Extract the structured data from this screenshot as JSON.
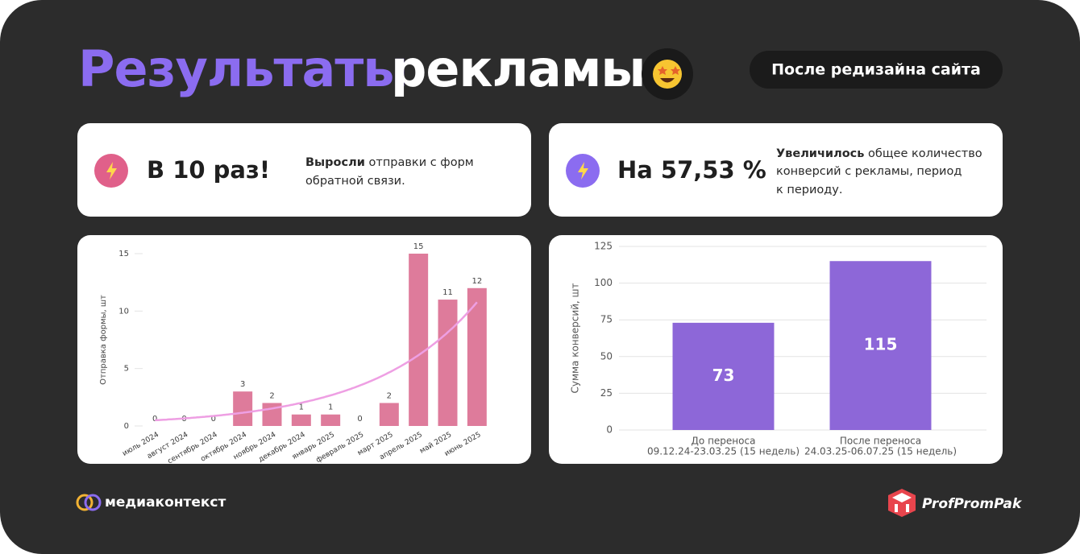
{
  "header": {
    "title_accent": "Результаты",
    "title_rest": "рекламы",
    "badge": "После редизайна сайта"
  },
  "cards": [
    {
      "headline": "В 10 раз!",
      "lead": "Выросли",
      "lines": [
        "отправки с форм",
        "обратной связи."
      ]
    },
    {
      "headline": "На 57,53 %",
      "lead": "Увеличилось",
      "lines": [
        "общее количество",
        "конверсий с рекламы, период",
        "к периоду."
      ]
    }
  ],
  "chart_data": [
    {
      "type": "bar",
      "ylabel": "Отправка формы, шт",
      "categories": [
        "июль 2024",
        "август 2024",
        "сентябрь 2024",
        "октябрь 2024",
        "ноябрь 2024",
        "декабрь 2024",
        "январь 2025",
        "февраль 2025",
        "март 2025",
        "апрель 2025",
        "май 2025",
        "июнь 2025"
      ],
      "values": [
        0,
        0,
        0,
        3,
        2,
        1,
        1,
        0,
        2,
        15,
        11,
        12
      ],
      "color": "#de7b9b",
      "ylim": [
        0,
        15
      ],
      "yticks": [
        0,
        5,
        10,
        15
      ],
      "value_labels_shown": true,
      "trendline": {
        "type": "exponential",
        "color": "#ee9fe3"
      }
    },
    {
      "type": "bar",
      "ylabel": "Сумма конверсий, шт",
      "categories": [
        [
          "До переноса",
          "09.12.24-23.03.25 (15 недель)"
        ],
        [
          "После переноса",
          "24.03.25-06.07.25 (15 недель)"
        ]
      ],
      "values": [
        73,
        115
      ],
      "color": "#8d67d8",
      "ylim": [
        0,
        125
      ],
      "yticks": [
        0,
        25,
        50,
        75,
        100,
        125
      ],
      "grid": true,
      "value_labels_shown": true
    }
  ],
  "footer": {
    "left_logo": "медиаконтекст",
    "right_logo": "ProfPromPak"
  }
}
